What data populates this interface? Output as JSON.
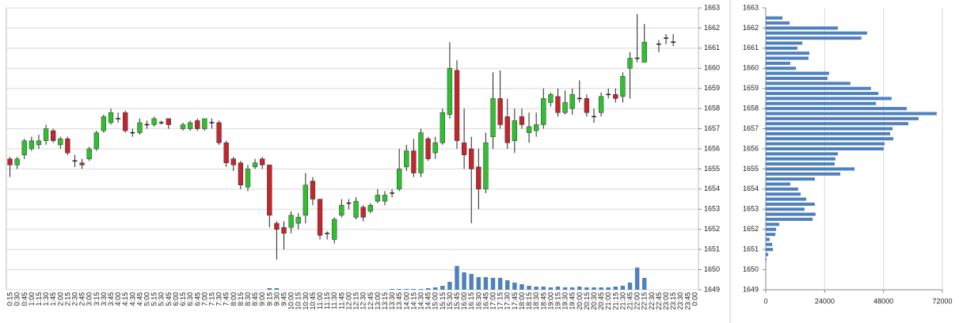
{
  "chart_data": [
    {
      "type": "candlestick",
      "categories": [
        "0:15",
        "0:30",
        "0:45",
        "1:00",
        "1:15",
        "1:30",
        "1:45",
        "2:00",
        "2:15",
        "2:30",
        "2:45",
        "3:00",
        "3:15",
        "3:30",
        "3:45",
        "4:00",
        "4:15",
        "4:30",
        "4:45",
        "5:00",
        "5:15",
        "5:30",
        "5:45",
        "6:00",
        "6:15",
        "6:30",
        "6:45",
        "7:00",
        "7:15",
        "7:30",
        "7:45",
        "8:00",
        "8:15",
        "8:30",
        "8:45",
        "9:00",
        "9:15",
        "9:30",
        "9:45",
        "10:00",
        "10:15",
        "10:30",
        "10:45",
        "11:00",
        "11:15",
        "11:30",
        "11:45",
        "12:00",
        "12:15",
        "12:30",
        "12:45",
        "13:00",
        "13:15",
        "13:30",
        "13:45",
        "14:00",
        "14:15",
        "14:30",
        "14:45",
        "15:00",
        "15:15",
        "15:30",
        "15:45",
        "16:00",
        "16:15",
        "16:30",
        "16:45",
        "17:00",
        "17:15",
        "17:30",
        "17:45",
        "18:00",
        "18:15",
        "18:30",
        "18:45",
        "19:00",
        "19:15",
        "19:30",
        "19:45",
        "20:00",
        "20:15",
        "20:30",
        "20:45",
        "21:00",
        "21:15",
        "21:30",
        "21:45",
        "22:00",
        "22:15",
        "22:30",
        "22:45",
        "23:00",
        "23:15",
        "23:30",
        "23:45",
        "0:00"
      ],
      "open": [
        1655.5,
        1655.2,
        1655.7,
        1656.0,
        1656.2,
        1656.4,
        1656.9,
        1656.2,
        1656.5,
        1655.4,
        1655.3,
        1655.5,
        1656.0,
        1656.9,
        1657.3,
        1657.5,
        1657.8,
        1656.8,
        1656.8,
        1657.2,
        1657.2,
        1657.3,
        1657.5,
        null,
        1657.0,
        1657.0,
        1657.4,
        1657.0,
        1657.3,
        1657.3,
        1656.3,
        1655.5,
        1655.3,
        1654.1,
        1655.1,
        1655.5,
        1655.2,
        1652.3,
        1652.1,
        1652.1,
        1652.3,
        1652.7,
        1654.4,
        1653.5,
        1651.8,
        1651.5,
        1652.7,
        1653.3,
        1652.6,
        1653.1,
        1652.9,
        1653.4,
        1653.4,
        1653.8,
        1654.0,
        1655.1,
        1655.9,
        1654.8,
        1656.5,
        1655.8,
        1656.3,
        1657.7,
        1659.9,
        1656.3,
        1656.0,
        1655.1,
        1654.0,
        1656.6,
        1658.5,
        1657.6,
        1656.4,
        1657.6,
        1656.8,
        1656.9,
        1657.2,
        1658.3,
        1658.6,
        1657.8,
        1658.0,
        1658.5,
        1658.5,
        1657.6,
        1657.8,
        1658.7,
        1658.7,
        1658.6,
        1660.0,
        1660.5,
        1660.3,
        null,
        1661.2,
        1661.5,
        1661.3,
        null,
        null,
        null
      ],
      "high": [
        1655.6,
        1655.6,
        1656.5,
        1656.6,
        1656.7,
        1657.2,
        1657.0,
        1656.6,
        1656.6,
        1655.7,
        1655.5,
        1656.1,
        1656.9,
        1657.7,
        1658.0,
        1657.8,
        1657.9,
        1657.0,
        1657.5,
        1657.4,
        1657.6,
        1657.4,
        1657.5,
        null,
        1657.3,
        1657.4,
        1657.5,
        1657.5,
        1657.5,
        1657.4,
        1656.4,
        1655.6,
        1655.4,
        1655.2,
        1655.5,
        1655.6,
        1655.2,
        1652.4,
        1652.4,
        1652.9,
        1652.8,
        1654.8,
        1654.6,
        1653.5,
        1651.9,
        1652.6,
        1653.5,
        1653.5,
        1653.6,
        1653.2,
        1653.3,
        1654.0,
        1653.9,
        1654.0,
        1656.0,
        1656.2,
        1656.5,
        1657.0,
        1656.6,
        1656.6,
        1658.0,
        1661.3,
        1660.4,
        1658.0,
        1656.6,
        1656.0,
        1656.8,
        1659.8,
        1659.9,
        1658.5,
        1658.0,
        1658.0,
        1657.8,
        1657.8,
        1659.0,
        1658.8,
        1659.0,
        1658.9,
        1659.0,
        1659.4,
        1658.7,
        1658.0,
        1658.8,
        1659.0,
        1659.0,
        1659.8,
        1660.8,
        1662.7,
        1662.2,
        null,
        1661.4,
        1661.7,
        1661.7,
        null,
        null,
        null
      ],
      "low": [
        1654.6,
        1655.0,
        1655.5,
        1655.9,
        1656.0,
        1656.2,
        1656.3,
        1656.0,
        1655.7,
        1655.1,
        1655.0,
        1655.4,
        1655.9,
        1656.8,
        1657.2,
        1657.3,
        1656.8,
        1656.6,
        1656.7,
        1657.0,
        1657.1,
        1657.2,
        1657.0,
        null,
        1656.9,
        1656.9,
        1656.9,
        1656.9,
        1657.0,
        1656.2,
        1655.1,
        1654.9,
        1654.0,
        1653.9,
        1655.0,
        1655.0,
        1652.1,
        1650.5,
        1651.0,
        1651.8,
        1652.0,
        1652.3,
        1653.2,
        1651.5,
        1651.5,
        1651.3,
        1652.6,
        1653.0,
        1652.5,
        1652.4,
        1652.8,
        1653.3,
        1653.2,
        1653.6,
        1653.9,
        1654.9,
        1654.6,
        1654.6,
        1655.4,
        1655.5,
        1656.2,
        1657.5,
        1656.0,
        1655.0,
        1652.3,
        1653.0,
        1653.8,
        1656.0,
        1657.0,
        1656.0,
        1655.8,
        1657.0,
        1656.3,
        1656.6,
        1657.0,
        1658.1,
        1657.6,
        1657.7,
        1657.7,
        1658.3,
        1657.6,
        1657.3,
        1657.6,
        1658.5,
        1658.3,
        1658.3,
        1658.5,
        1660.3,
        1660.3,
        null,
        1660.8,
        1661.2,
        1661.1,
        null,
        null,
        null
      ],
      "close": [
        1655.2,
        1655.5,
        1656.4,
        1656.4,
        1656.4,
        1657.0,
        1656.4,
        1656.5,
        1655.8,
        1655.4,
        1655.2,
        1656.0,
        1656.8,
        1657.6,
        1657.8,
        1657.5,
        1656.9,
        1656.8,
        1657.3,
        1657.2,
        1657.5,
        1657.3,
        1657.2,
        null,
        1657.2,
        1657.3,
        1657.0,
        1657.5,
        1657.3,
        1656.3,
        1655.3,
        1655.2,
        1654.2,
        1655.0,
        1655.3,
        1655.2,
        1652.7,
        1652.0,
        1651.8,
        1652.7,
        1652.6,
        1654.2,
        1653.5,
        1651.7,
        1651.8,
        1652.5,
        1653.2,
        1653.3,
        1653.4,
        1652.6,
        1653.2,
        1653.7,
        1653.7,
        1653.8,
        1655.0,
        1655.9,
        1654.8,
        1656.8,
        1655.5,
        1656.3,
        1657.8,
        1660.0,
        1656.4,
        1655.7,
        1655.0,
        1654.0,
        1656.3,
        1658.5,
        1657.2,
        1656.3,
        1657.4,
        1657.2,
        1657.1,
        1657.2,
        1658.5,
        1658.7,
        1657.8,
        1658.3,
        1658.7,
        1658.5,
        1657.8,
        1657.6,
        1658.6,
        1658.7,
        1658.5,
        1659.6,
        1660.5,
        1660.5,
        1661.3,
        null,
        1661.2,
        1661.5,
        1661.3,
        null,
        null,
        null
      ],
      "volume": [
        0,
        0,
        0,
        0,
        0,
        0,
        0,
        0,
        0,
        0,
        0,
        0,
        0,
        0,
        0,
        0,
        0,
        0,
        0,
        0,
        0,
        0,
        0,
        null,
        0,
        0,
        0,
        0,
        0,
        0,
        0,
        0,
        0,
        0,
        0,
        0,
        2,
        2,
        0,
        0,
        0,
        0,
        0,
        0,
        0,
        0,
        0,
        0,
        0,
        0,
        0,
        0,
        0,
        1,
        1,
        1,
        1,
        1,
        2,
        3,
        5,
        10,
        30,
        22,
        20,
        16,
        16,
        15,
        15,
        12,
        9,
        7,
        5,
        4,
        4,
        3,
        4,
        3,
        3,
        4,
        3,
        3,
        3,
        3,
        4,
        5,
        9,
        28,
        15,
        null,
        0,
        0,
        0,
        null,
        null,
        null
      ],
      "up_color": "#2fc02f",
      "down_color": "#c1272d",
      "volume_color": "#4f81bd",
      "ylim": [
        1649,
        1663
      ],
      "yticks": [
        1649,
        1650,
        1651,
        1652,
        1653,
        1654,
        1655,
        1656,
        1657,
        1658,
        1659,
        1660,
        1661,
        1662,
        1663
      ],
      "grid": true
    },
    {
      "type": "barh",
      "y": [
        1662.5,
        1662.25,
        1662.0,
        1661.75,
        1661.5,
        1661.25,
        1661.0,
        1660.75,
        1660.5,
        1660.25,
        1660.0,
        1659.75,
        1659.5,
        1659.25,
        1659.0,
        1658.75,
        1658.5,
        1658.25,
        1658.0,
        1657.75,
        1657.5,
        1657.25,
        1657.0,
        1656.75,
        1656.5,
        1656.25,
        1656.0,
        1655.75,
        1655.5,
        1655.25,
        1655.0,
        1654.75,
        1654.5,
        1654.25,
        1654.0,
        1653.75,
        1653.5,
        1653.25,
        1653.0,
        1652.75,
        1652.5,
        1652.25,
        1652.0,
        1651.75,
        1651.5,
        1651.25,
        1651.0,
        1650.75,
        1650.5
      ],
      "values": [
        6800,
        9700,
        29400,
        41300,
        39000,
        14900,
        12900,
        17800,
        17400,
        10000,
        12300,
        25800,
        25200,
        34500,
        42900,
        45900,
        51300,
        44900,
        57500,
        69700,
        62300,
        58100,
        51700,
        50700,
        52000,
        48400,
        48100,
        29400,
        28400,
        28100,
        36200,
        30400,
        20000,
        10000,
        13200,
        14200,
        16500,
        20000,
        15800,
        20300,
        19100,
        5500,
        4200,
        3900,
        1600,
        2600,
        2900,
        1000,
        300
      ],
      "color": "#4f81bd",
      "xlim": [
        0,
        72000
      ],
      "xticks": [
        0,
        24000,
        48000,
        72000
      ],
      "ylim": [
        1649,
        1663
      ],
      "yticks": [
        1649,
        1650,
        1651,
        1652,
        1653,
        1654,
        1655,
        1656,
        1657,
        1658,
        1659,
        1660,
        1661,
        1662,
        1663
      ],
      "grid": true
    }
  ]
}
